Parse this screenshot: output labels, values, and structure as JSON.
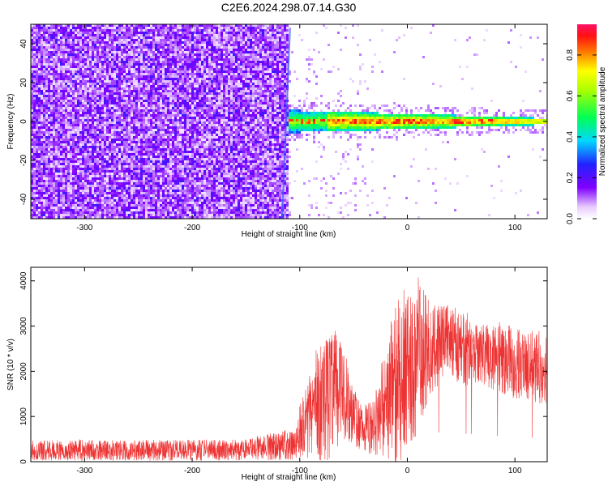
{
  "title": "C2E6.2024.298.07.14.G30",
  "chart_data": [
    {
      "type": "heatmap",
      "xlabel": "Height of straight line (km)",
      "ylabel": "Frequency (Hz)",
      "xlim": [
        -350,
        130
      ],
      "ylim": [
        -50,
        50
      ],
      "xticks": [
        -300,
        -200,
        -100,
        0,
        100
      ],
      "yticks": [
        -40,
        -20,
        0,
        20,
        40
      ],
      "colorbar": {
        "label": "Normalized spectral amplitude",
        "range": [
          0,
          0.95
        ],
        "ticks": [
          0.0,
          0.2,
          0.4,
          0.6,
          0.8
        ],
        "colormap": "rainbow (white-purple-blue-cyan-green-yellow-red-magenta)"
      },
      "features": {
        "noise_region_x": [
          -350,
          -112
        ],
        "signal_start_x": -112,
        "signal_center_freq_hz": 0
      }
    },
    {
      "type": "line",
      "xlabel": "Height of straight line (km)",
      "ylabel": "SNR (10 * v/v)",
      "xlim": [
        -350,
        130
      ],
      "ylim": [
        0,
        4300
      ],
      "xticks": [
        -300,
        -200,
        -100,
        0,
        100
      ],
      "yticks": [
        0,
        1000,
        2000,
        3000,
        4000
      ],
      "series": [
        {
          "color": "#ee3333",
          "envelope_x": [
            -350,
            -250,
            -150,
            -105,
            -95,
            -80,
            -70,
            -60,
            -50,
            -40,
            -30,
            -20,
            -10,
            0,
            10,
            20,
            30,
            40,
            50,
            60,
            70,
            80,
            90,
            100,
            110,
            120,
            130
          ],
          "envelope_mean": [
            250,
            250,
            260,
            400,
            900,
            1300,
            1600,
            1500,
            1000,
            700,
            800,
            1300,
            1800,
            2000,
            2300,
            2500,
            2600,
            2700,
            2500,
            2450,
            2400,
            2300,
            2250,
            2200,
            2150,
            2100,
            2100
          ],
          "envelope_max": [
            500,
            500,
            520,
            800,
            1800,
            2800,
            3300,
            2600,
            1700,
            1300,
            1600,
            2600,
            4000,
            3800,
            4300,
            3700,
            3600,
            3500,
            3500,
            3300,
            3200,
            3100,
            3100,
            3100,
            3000,
            3000,
            3000
          ]
        }
      ]
    }
  ]
}
